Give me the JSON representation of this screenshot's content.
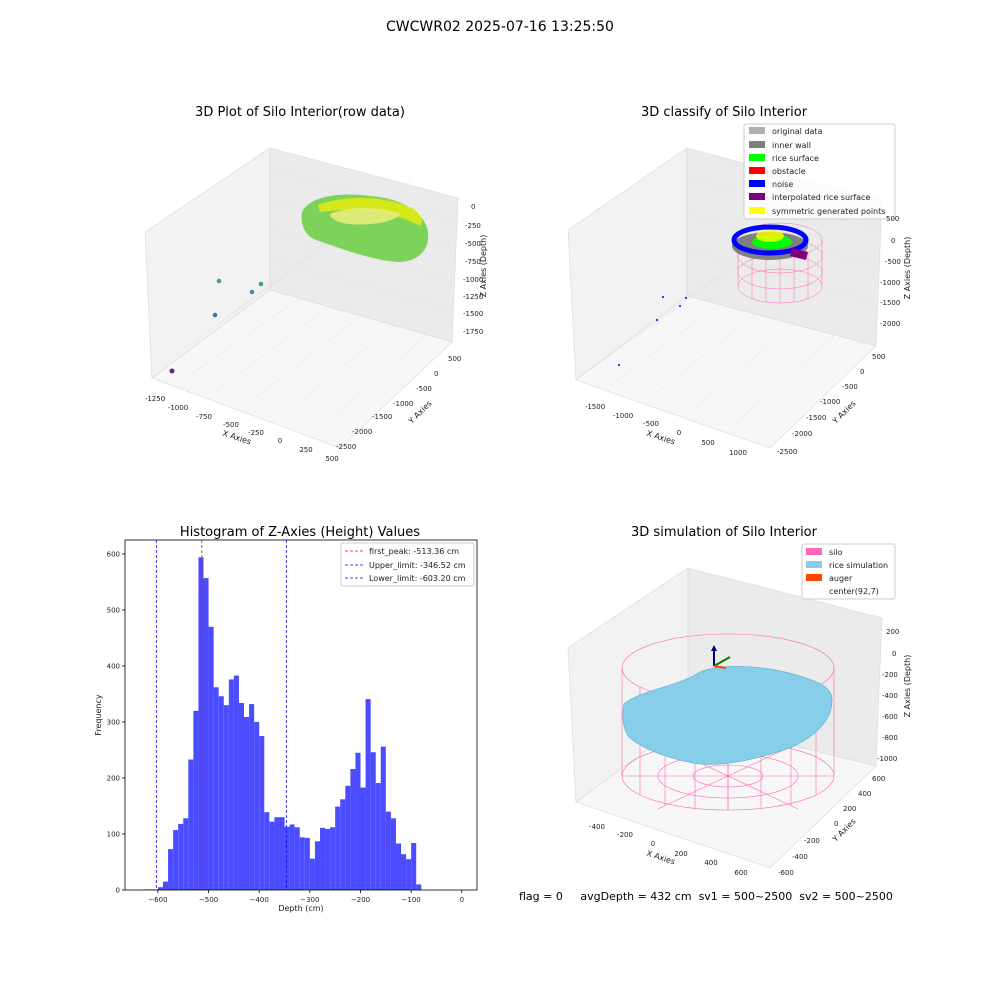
{
  "suptitle": "CWCWR02 2025-07-16 13:25:50",
  "status": {
    "flag": "flag = 0",
    "avg": "avgDepth = 432 cm",
    "sv1": "sv1 = 500~2500",
    "sv2": "sv2 = 500~2500"
  },
  "colors": {
    "original": "#b0b0b0",
    "inner_wall": "#808080",
    "rice_surface": "#00ff00",
    "obstacle": "#ff0000",
    "noise": "#0000ff",
    "interpolated": "#800080",
    "symmetric": "#ffff00",
    "silo": "#ff69b4",
    "rice_sim": "#87ceeb",
    "auger": "#ff4500",
    "hist_bar": "#4b4bff"
  },
  "chart_data": [
    {
      "type": "scatter",
      "title": "3D Plot of Silo Interior(row data)",
      "xlabel": "X Axies",
      "ylabel": "Y Axies",
      "zlabel": "Z Axies (Depth)",
      "xticks": [
        "-1250",
        "-1000",
        "-750",
        "-500",
        "-250",
        "0",
        "250",
        "500"
      ],
      "yticks": [
        "500",
        "0",
        "-500",
        "-1000",
        "-1500",
        "-2000",
        "-2500"
      ],
      "zticks": [
        "0",
        "-250",
        "-500",
        "-750",
        "-1000",
        "-1250",
        "-1500",
        "-1750"
      ]
    },
    {
      "type": "scatter",
      "title": "3D classify of Silo Interior",
      "xlabel": "X Axies",
      "ylabel": "Y Axies",
      "zlabel": "Z Axies (Depth)",
      "xticks": [
        "-1500",
        "-1000",
        "-500",
        "0",
        "500",
        "1000"
      ],
      "yticks": [
        "500",
        "0",
        "-500",
        "-1000",
        "-1500",
        "-2000",
        "-2500"
      ],
      "zticks": [
        "500",
        "0",
        "-500",
        "-1000",
        "-1500",
        "-2000"
      ],
      "legend": [
        "original data",
        "inner wall",
        "rice surface",
        "obstacle",
        "noise",
        "interpolated rice surface",
        "symmetric generated points"
      ]
    },
    {
      "type": "bar",
      "title": "Histogram of Z-Axies (Height) Values",
      "xlabel": "Depth (cm)",
      "ylabel": "Frequency",
      "xlim": [
        -665,
        30
      ],
      "ylim": [
        0,
        625
      ],
      "xticks": [
        -600,
        -500,
        -400,
        -300,
        -200,
        -100,
        0
      ],
      "yticks": [
        0,
        100,
        200,
        300,
        400,
        500,
        600
      ],
      "bin_width": 10,
      "bin_starts": [
        -630,
        -620,
        -610,
        -600,
        -590,
        -580,
        -570,
        -560,
        -550,
        -540,
        -530,
        -520,
        -510,
        -500,
        -490,
        -480,
        -470,
        -460,
        -450,
        -440,
        -430,
        -420,
        -410,
        -400,
        -390,
        -380,
        -370,
        -360,
        -350,
        -340,
        -330,
        -320,
        -310,
        -300,
        -290,
        -280,
        -270,
        -260,
        -250,
        -240,
        -230,
        -220,
        -210,
        -200,
        -190,
        -180,
        -170,
        -160,
        -150,
        -140,
        -130,
        -120,
        -110,
        -100,
        -90,
        -80,
        -70,
        -60,
        -50,
        -40,
        -30,
        -20,
        -10
      ],
      "values": [
        1,
        1,
        1,
        5,
        15,
        73,
        107,
        118,
        128,
        233,
        320,
        594,
        557,
        470,
        362,
        346,
        330,
        376,
        383,
        334,
        309,
        332,
        300,
        275,
        139,
        122,
        130,
        130,
        113,
        117,
        112,
        94,
        93,
        56,
        87,
        111,
        109,
        112,
        149,
        162,
        186,
        216,
        245,
        183,
        341,
        246,
        191,
        256,
        140,
        128,
        83,
        64,
        55,
        84,
        10,
        0,
        0,
        0,
        0,
        0,
        0,
        0,
        0
      ],
      "vlines": [
        {
          "label": "first_peak: -513.36 cm",
          "x": -513.36,
          "color": "#ff0000"
        },
        {
          "label": "Upper_limit: -346.52 cm",
          "x": -346.52,
          "color": "#0000ff"
        },
        {
          "label": "Lower_limit: -603.20 cm",
          "x": -603.2,
          "color": "#0000ff"
        }
      ]
    },
    {
      "type": "area",
      "title": "3D simulation of Silo Interior",
      "xlabel": "X Axies",
      "ylabel": "Y Axies",
      "zlabel": "Z Axies (Depth)",
      "xticks": [
        "-400",
        "-200",
        "0",
        "200",
        "400",
        "600"
      ],
      "yticks": [
        "600",
        "400",
        "200",
        "0",
        "-200",
        "-400",
        "-600"
      ],
      "zticks": [
        "200",
        "0",
        "-200",
        "-400",
        "-600",
        "-800",
        "-1000"
      ],
      "legend": [
        "silo",
        "rice simulation",
        "auger",
        "center(92,7)"
      ]
    }
  ]
}
